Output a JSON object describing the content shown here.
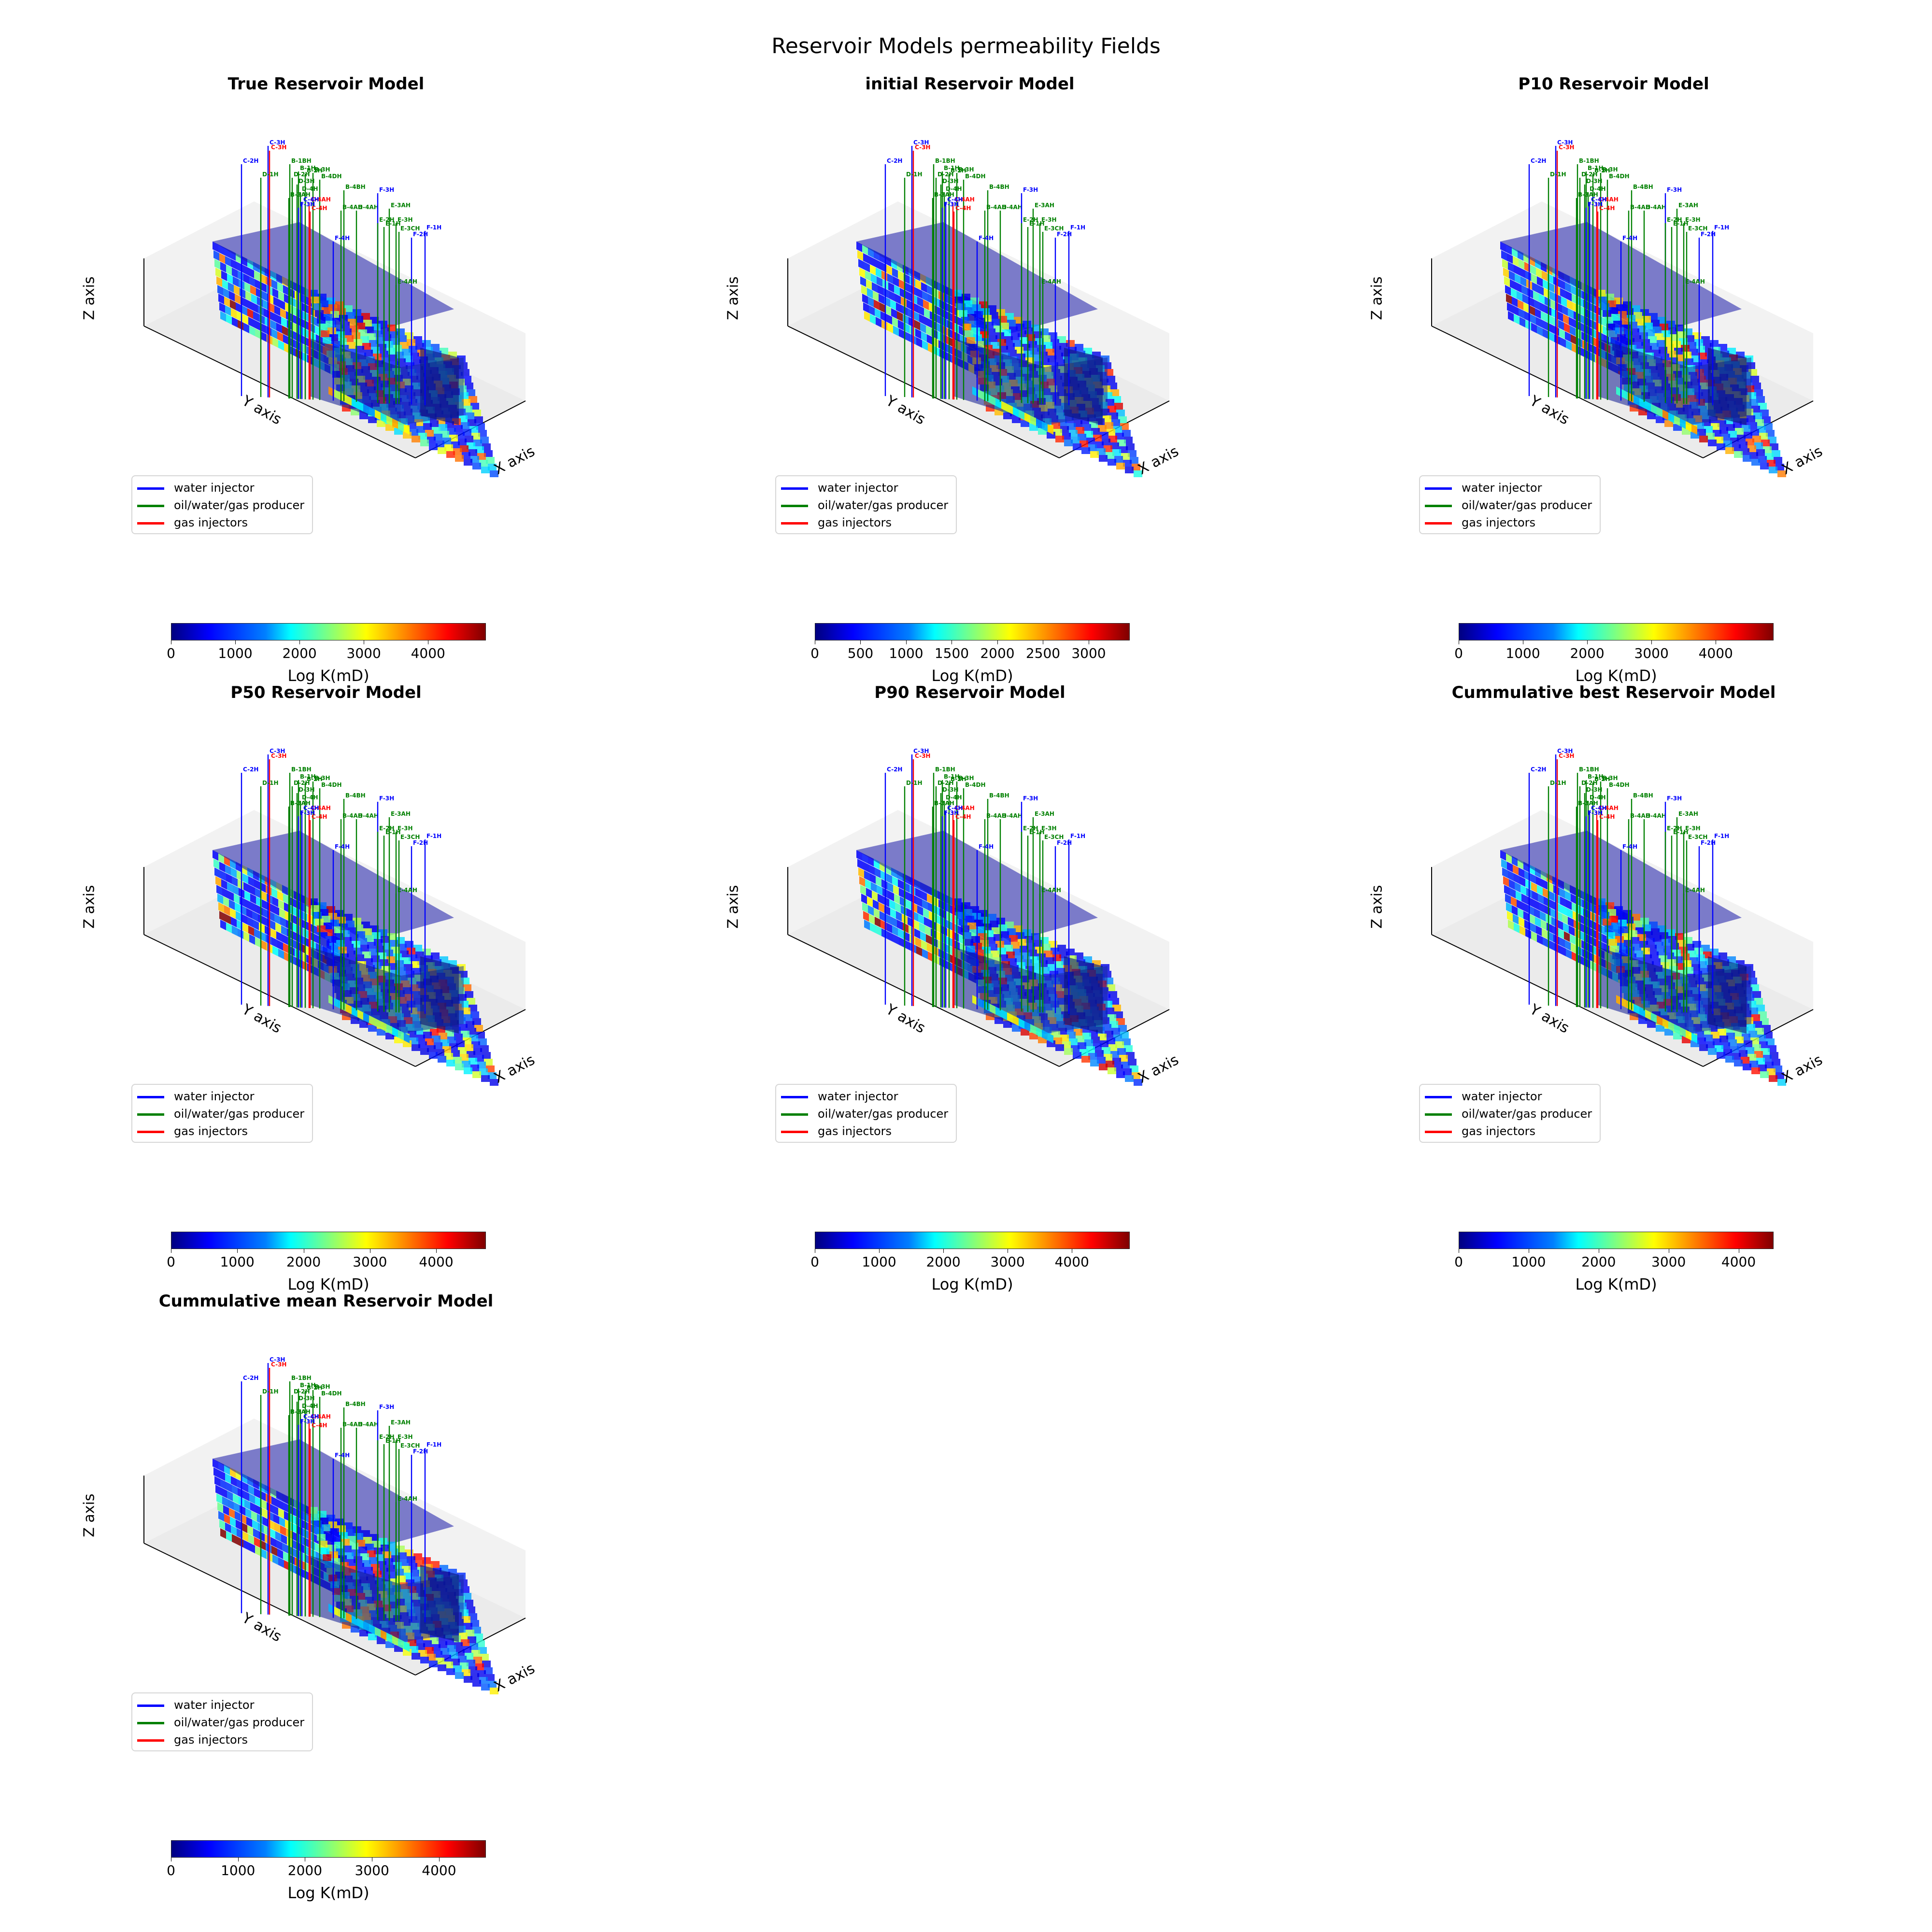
{
  "figure": {
    "title": "Reservoir Models permeability Fields"
  },
  "legend_items": [
    {
      "label": "water injector",
      "color": "#0000ff"
    },
    {
      "label": "oil/water/gas producer",
      "color": "#008000"
    },
    {
      "label": "gas injectors",
      "color": "#ff0000"
    }
  ],
  "axis_labels": {
    "x": "X axis",
    "y": "Y axis",
    "z": "Z axis"
  },
  "colorbar_label": "Log K(mD)",
  "colormap": "jet",
  "well_labels": {
    "blue": [
      "C-3H",
      "C-2H",
      "C-1H",
      "C-4H",
      "F-3H",
      "F-4H",
      "F-1H",
      "F-2H"
    ],
    "green": [
      "D-1H",
      "B-1BH",
      "B-1H",
      "B-2H",
      "B-3H",
      "D-2H",
      "D-3H",
      "D-4H",
      "B-4BH",
      "B-4DH",
      "B-3AH",
      "B-4AH",
      "D-4AH",
      "E-3AH",
      "E-2H",
      "E-3H",
      "E-1H",
      "E-3CH",
      "E-2AH",
      "E-4AH",
      "E-4H"
    ],
    "red": [
      "C-3H",
      "C-4AH",
      "C-4H",
      "C-2AH"
    ]
  },
  "chart_data": [
    {
      "type": "3d-voxel",
      "title": "True Reservoir Model",
      "colorbar_ticks": [
        0,
        1000,
        2000,
        3000,
        4000
      ],
      "colorbar_range": [
        0,
        4900
      ]
    },
    {
      "type": "3d-voxel",
      "title": "initial Reservoir Model",
      "colorbar_ticks": [
        0,
        500,
        1000,
        1500,
        2000,
        2500,
        3000
      ],
      "colorbar_range": [
        0,
        3450
      ]
    },
    {
      "type": "3d-voxel",
      "title": "P10 Reservoir Model",
      "colorbar_ticks": [
        0,
        1000,
        2000,
        3000,
        4000
      ],
      "colorbar_range": [
        0,
        4900
      ]
    },
    {
      "type": "3d-voxel",
      "title": "P50 Reservoir Model",
      "colorbar_ticks": [
        0,
        1000,
        2000,
        3000,
        4000
      ],
      "colorbar_range": [
        0,
        4750
      ]
    },
    {
      "type": "3d-voxel",
      "title": "P90 Reservoir Model",
      "colorbar_ticks": [
        0,
        1000,
        2000,
        3000,
        4000
      ],
      "colorbar_range": [
        0,
        4900
      ]
    },
    {
      "type": "3d-voxel",
      "title": "Cummulative best Reservoir Model",
      "colorbar_ticks": [
        0,
        1000,
        2000,
        3000,
        4000
      ],
      "colorbar_range": [
        0,
        4500
      ]
    },
    {
      "type": "3d-voxel",
      "title": "Cummulative mean Reservoir Model",
      "colorbar_ticks": [
        0,
        1000,
        2000,
        3000,
        4000
      ],
      "colorbar_range": [
        0,
        4700
      ]
    }
  ]
}
